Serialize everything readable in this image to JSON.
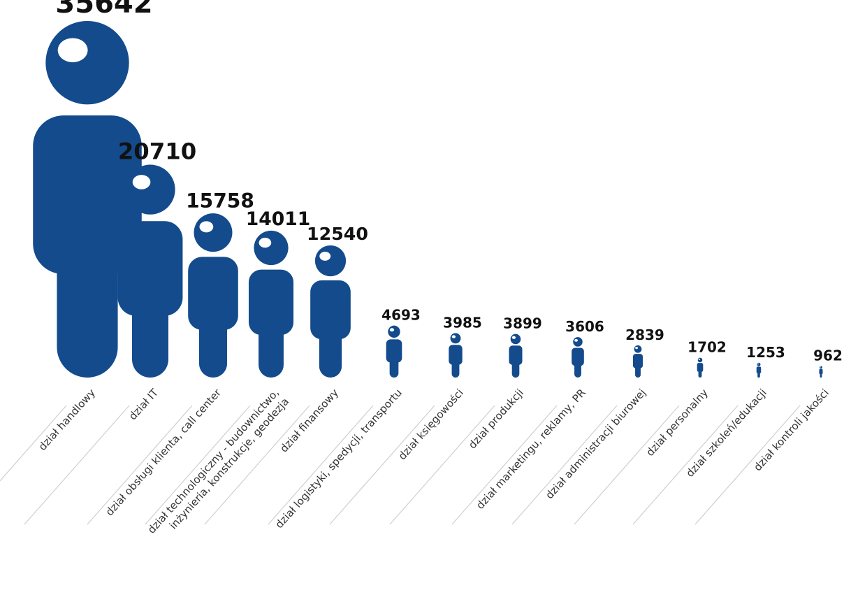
{
  "chart_data": {
    "type": "bar",
    "title": "",
    "xlabel": "",
    "ylabel": "",
    "grid": false,
    "legend": "none",
    "marker": "person-icon",
    "categories": [
      [
        "dział handlowy"
      ],
      [
        "dział IT"
      ],
      [
        "dział obsługi klienta, call center"
      ],
      [
        "dział technologiczny - budownictwo,",
        "inżynieria, konstrukcje, geodezja"
      ],
      [
        "dział finansowy"
      ],
      [
        "dział logistyki, spedycji, transportu"
      ],
      [
        "dział księgowości"
      ],
      [
        "dział produkcji"
      ],
      [
        "dział marketingu, reklamy, PR"
      ],
      [
        "dział administracji biurowej"
      ],
      [
        "dział personalny"
      ],
      [
        "dział szkoleń/edukacji"
      ],
      [
        "dział kontroli jakości"
      ]
    ],
    "values": [
      35642,
      20710,
      15758,
      14011,
      12540,
      4693,
      3985,
      3899,
      3606,
      2839,
      1702,
      1253,
      962
    ],
    "colors": {
      "figure": "#134b8c",
      "highlight": "#ffffff",
      "value_text": "#111111",
      "label_text": "#333333",
      "separator": "#cfcfcf"
    }
  }
}
